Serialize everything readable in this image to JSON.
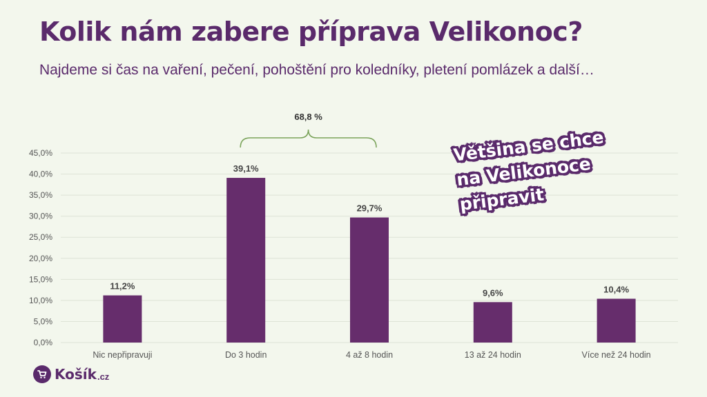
{
  "title": "Kolik nám zabere příprava Velikonoc?",
  "subtitle": "Najdeme si čas na vaření, pečení, pohoštění pro koledníky, pletení pomlázek a další…",
  "callout": {
    "line1": "Většina se chce",
    "line2": "na Velikonoce",
    "line3": "připravit"
  },
  "logo": {
    "name": "Košík",
    "tld": ".cz",
    "icon": "cart-icon"
  },
  "colors": {
    "bar": "#662d6c",
    "brand": "#5a2a6b",
    "bracket": "#7aa35a",
    "grid": "#dde3d6",
    "tick_text": "#555555",
    "label_text": "#444444"
  },
  "chart_data": {
    "type": "bar",
    "categories": [
      "Nic nepřipravuji",
      "Do 3 hodin",
      "4 až 8 hodin",
      "13 až 24 hodin",
      "Více než 24 hodin"
    ],
    "values": [
      11.2,
      39.1,
      29.7,
      9.6,
      10.4
    ],
    "value_labels": [
      "11,2%",
      "39,1%",
      "29,7%",
      "9,6%",
      "10,4%"
    ],
    "ylim": [
      0,
      45
    ],
    "yticks": [
      "0,0%",
      "5,0%",
      "10,0%",
      "15,0%",
      "20,0%",
      "25,0%",
      "30,0%",
      "35,0%",
      "40,0%",
      "45,0%"
    ],
    "grid": true,
    "annotation": {
      "text": "68,8 %",
      "spans": [
        "Do 3 hodin",
        "4 až 8 hodin"
      ]
    }
  }
}
